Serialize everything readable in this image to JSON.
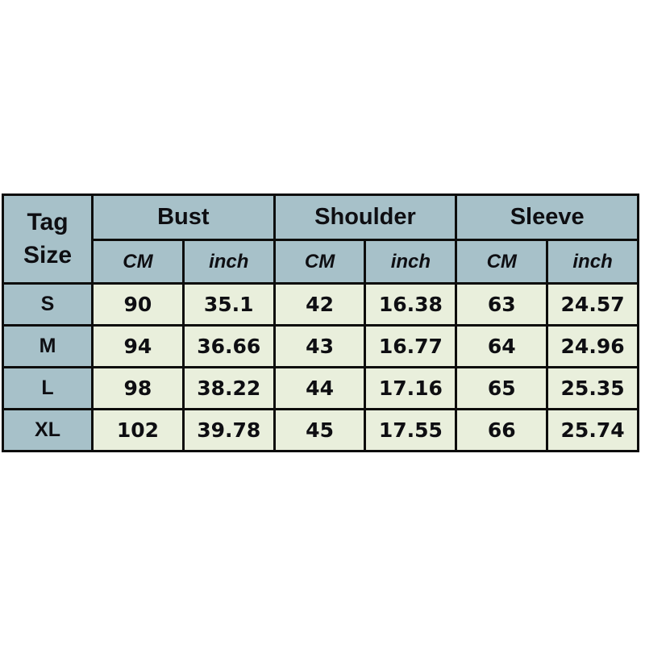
{
  "page": {
    "background_color": "#ffffff",
    "description": "Garment size chart table"
  },
  "colors": {
    "header_bg": "#a7c1c9",
    "cell_bg": "#e9efdc",
    "border": "#0d0d0c",
    "text": "#0e0e12"
  },
  "table": {
    "corner_label": "Tag\nSize",
    "groups": [
      {
        "label": "Bust"
      },
      {
        "label": "Shoulder"
      },
      {
        "label": "Sleeve"
      }
    ],
    "sub_headers": [
      "CM",
      "inch",
      "CM",
      "inch",
      "CM",
      "inch"
    ],
    "rows": [
      {
        "tag": "S",
        "cells": [
          "90",
          "35.1",
          "42",
          "16.38",
          "63",
          "24.57"
        ]
      },
      {
        "tag": "M",
        "cells": [
          "94",
          "36.66",
          "43",
          "16.77",
          "64",
          "24.96"
        ]
      },
      {
        "tag": "L",
        "cells": [
          "98",
          "38.22",
          "44",
          "17.16",
          "65",
          "25.35"
        ]
      },
      {
        "tag": "XL",
        "cells": [
          "102",
          "39.78",
          "45",
          "17.55",
          "66",
          "25.74"
        ]
      }
    ]
  },
  "chart_data": {
    "type": "table",
    "title": "",
    "corner_header": "Tag Size",
    "column_groups": [
      "Bust",
      "Shoulder",
      "Sleeve"
    ],
    "columns": [
      "Tag Size",
      "Bust CM",
      "Bust inch",
      "Shoulder CM",
      "Shoulder inch",
      "Sleeve CM",
      "Sleeve inch"
    ],
    "rows": [
      [
        "S",
        90,
        35.1,
        42,
        16.38,
        63,
        24.57
      ],
      [
        "M",
        94,
        36.66,
        43,
        16.77,
        64,
        24.96
      ],
      [
        "L",
        98,
        38.22,
        44,
        17.16,
        65,
        25.35
      ],
      [
        "XL",
        102,
        39.78,
        45,
        17.55,
        66,
        25.74
      ]
    ]
  }
}
